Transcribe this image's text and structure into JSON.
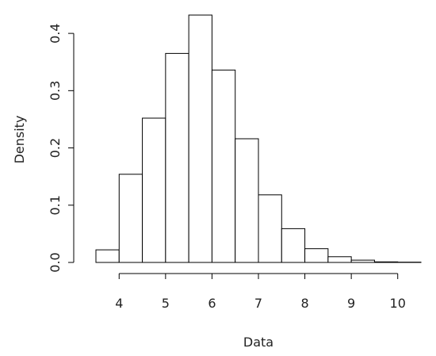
{
  "chart_data": {
    "type": "bar",
    "subtype": "histogram",
    "xlabel": "Data",
    "ylabel": "Density",
    "bin_edges": [
      3.5,
      4.0,
      4.5,
      5.0,
      5.5,
      6.0,
      6.5,
      7.0,
      7.5,
      8.0,
      8.5,
      9.0,
      9.5,
      10.0,
      10.5
    ],
    "values": [
      0.022,
      0.154,
      0.252,
      0.365,
      0.432,
      0.336,
      0.216,
      0.118,
      0.059,
      0.024,
      0.01,
      0.004,
      0.001,
      0.0005
    ],
    "x_ticks": [
      "4",
      "5",
      "6",
      "7",
      "8",
      "9",
      "10"
    ],
    "x_tick_values": [
      4,
      5,
      6,
      7,
      8,
      9,
      10
    ],
    "y_ticks": [
      "0.0",
      "0.1",
      "0.2",
      "0.3",
      "0.4"
    ],
    "y_tick_values": [
      0.0,
      0.1,
      0.2,
      0.3,
      0.4
    ],
    "xlim": [
      3.5,
      10.5
    ],
    "ylim": [
      0,
      0.432
    ],
    "grid": false,
    "bar_fill": "#ffffff",
    "bar_stroke": "#000000"
  }
}
